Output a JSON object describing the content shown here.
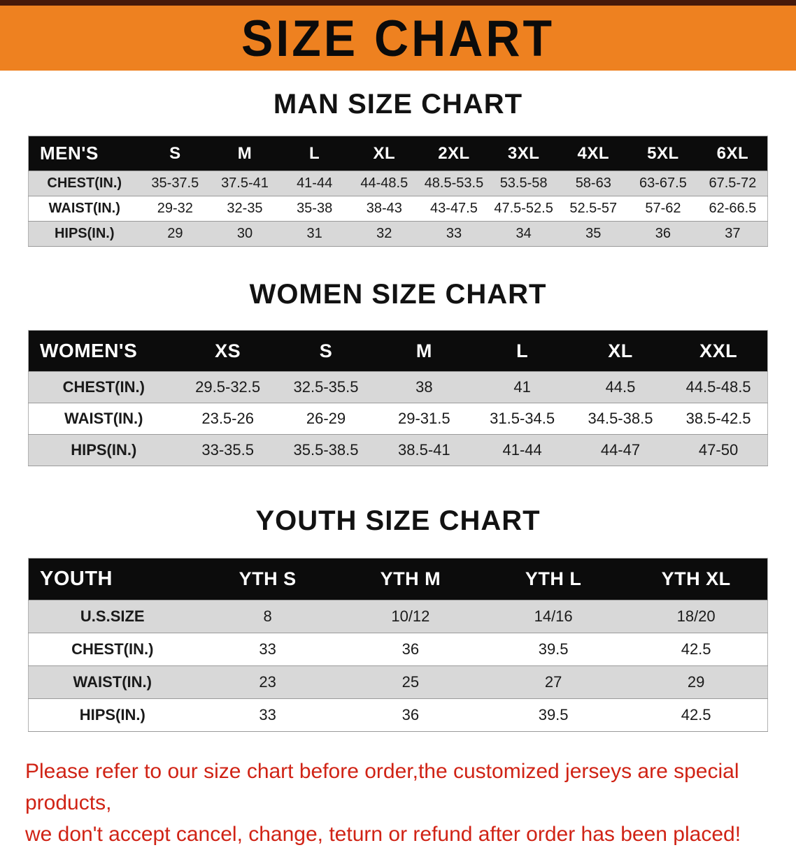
{
  "banner": {
    "title": "SIZE CHART"
  },
  "colors": {
    "banner_bg": "#EE8120",
    "banner_top_edge": "#46190a",
    "table_header_bg": "#0c0c0c",
    "table_header_text": "#ffffff",
    "row_shade": "#d8d8d8",
    "footer_text": "#d02315"
  },
  "sections": [
    {
      "heading": "MAN SIZE CHART",
      "corner_label": "MEN'S",
      "columns": [
        "S",
        "M",
        "L",
        "XL",
        "2XL",
        "3XL",
        "4XL",
        "5XL",
        "6XL"
      ],
      "rows": [
        {
          "label": "CHEST(IN.)",
          "values": [
            "35-37.5",
            "37.5-41",
            "41-44",
            "44-48.5",
            "48.5-53.5",
            "53.5-58",
            "58-63",
            "63-67.5",
            "67.5-72"
          ]
        },
        {
          "label": "WAIST(IN.)",
          "values": [
            "29-32",
            "32-35",
            "35-38",
            "38-43",
            "43-47.5",
            "47.5-52.5",
            "52.5-57",
            "57-62",
            "62-66.5"
          ]
        },
        {
          "label": "HIPS(IN.)",
          "values": [
            "29",
            "30",
            "31",
            "32",
            "33",
            "34",
            "35",
            "36",
            "37"
          ]
        }
      ]
    },
    {
      "heading": "WOMEN SIZE CHART",
      "corner_label": "WOMEN'S",
      "columns": [
        "XS",
        "S",
        "M",
        "L",
        "XL",
        "XXL"
      ],
      "rows": [
        {
          "label": "CHEST(IN.)",
          "values": [
            "29.5-32.5",
            "32.5-35.5",
            "38",
            "41",
            "44.5",
            "44.5-48.5"
          ]
        },
        {
          "label": "WAIST(IN.)",
          "values": [
            "23.5-26",
            "26-29",
            "29-31.5",
            "31.5-34.5",
            "34.5-38.5",
            "38.5-42.5"
          ]
        },
        {
          "label": "HIPS(IN.)",
          "values": [
            "33-35.5",
            "35.5-38.5",
            "38.5-41",
            "41-44",
            "44-47",
            "47-50"
          ]
        }
      ]
    },
    {
      "heading": "YOUTH SIZE CHART",
      "corner_label": "YOUTH",
      "columns": [
        "YTH S",
        "YTH M",
        "YTH L",
        "YTH XL"
      ],
      "rows": [
        {
          "label": "U.S.SIZE",
          "values": [
            "8",
            "10/12",
            "14/16",
            "18/20"
          ]
        },
        {
          "label": "CHEST(IN.)",
          "values": [
            "33",
            "36",
            "39.5",
            "42.5"
          ]
        },
        {
          "label": "WAIST(IN.)",
          "values": [
            "23",
            "25",
            "27",
            "29"
          ]
        },
        {
          "label": "HIPS(IN.)",
          "values": [
            "33",
            "36",
            "39.5",
            "42.5"
          ]
        }
      ]
    }
  ],
  "footer": {
    "line1": "Please refer to our size chart before order,the customized jerseys are special products,",
    "line2": "we don't accept cancel, change, teturn or refund after order has been placed!"
  }
}
